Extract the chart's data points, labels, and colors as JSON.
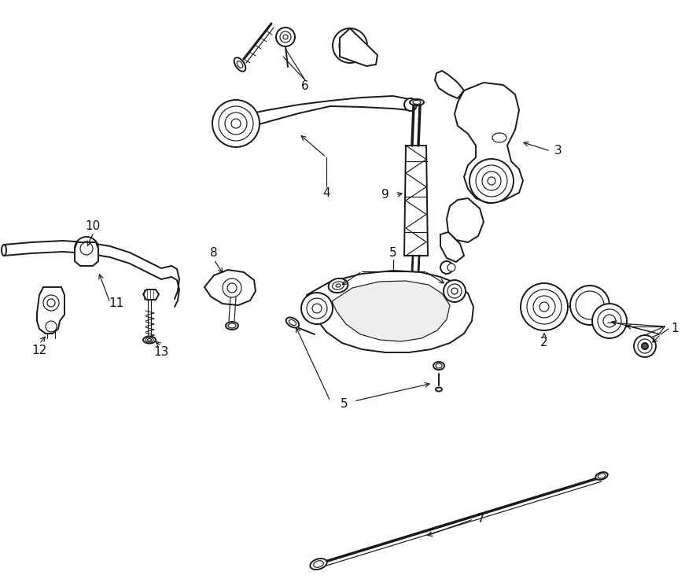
{
  "background_color": "#ffffff",
  "line_color": "#1a1a1a",
  "label_color": "#111111",
  "figsize": [
    8.85,
    7.36
  ],
  "dpi": 100
}
